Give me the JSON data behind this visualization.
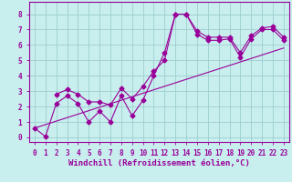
{
  "title": "",
  "xlabel": "Windchill (Refroidissement éolien,°C)",
  "background_color": "#c8eeee",
  "grid_color": "#9ecece",
  "line_color": "#990099",
  "xlim": [
    -0.5,
    23.5
  ],
  "ylim": [
    -0.3,
    8.8
  ],
  "xticks": [
    0,
    1,
    2,
    3,
    4,
    5,
    6,
    7,
    8,
    9,
    10,
    11,
    12,
    13,
    14,
    15,
    16,
    17,
    18,
    19,
    20,
    21,
    22,
    23
  ],
  "yticks": [
    0,
    1,
    2,
    3,
    4,
    5,
    6,
    7,
    8
  ],
  "line1_x": [
    0,
    1,
    2,
    3,
    4,
    5,
    6,
    7,
    8,
    9,
    10,
    11,
    12,
    13,
    14,
    15,
    16,
    17,
    18,
    19,
    20,
    21,
    22,
    23
  ],
  "line1_y": [
    0.6,
    0.05,
    2.2,
    2.7,
    2.2,
    1.0,
    1.7,
    1.0,
    2.7,
    1.4,
    2.4,
    4.0,
    5.5,
    8.0,
    8.0,
    6.7,
    6.3,
    6.3,
    6.4,
    5.2,
    6.4,
    7.0,
    7.0,
    6.3
  ],
  "line2_x": [
    0,
    23
  ],
  "line2_y": [
    0.6,
    5.8
  ],
  "line3_x": [
    2,
    3,
    4,
    5,
    6,
    7,
    8,
    9,
    10,
    11,
    12,
    13,
    14,
    15,
    16,
    17,
    18,
    19,
    20,
    21,
    22,
    23
  ],
  "line3_y": [
    2.8,
    3.1,
    2.8,
    2.3,
    2.3,
    2.1,
    3.2,
    2.5,
    3.3,
    4.3,
    5.0,
    8.0,
    8.0,
    6.9,
    6.5,
    6.5,
    6.5,
    5.5,
    6.6,
    7.1,
    7.2,
    6.5
  ],
  "xlabel_fontsize": 6.5,
  "tick_fontsize": 5.5,
  "marker_size": 2.5
}
